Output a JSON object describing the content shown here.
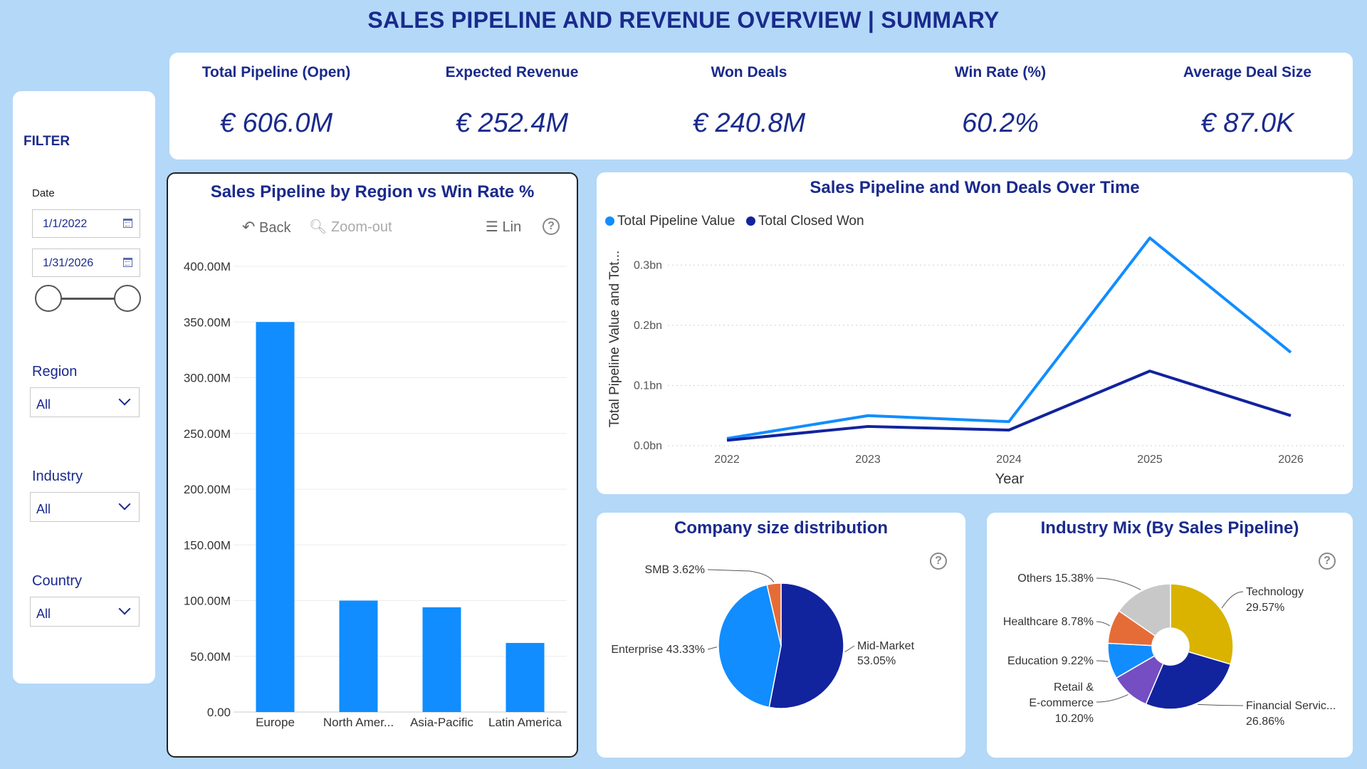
{
  "page": {
    "title": "SALES PIPELINE AND REVENUE OVERVIEW | SUMMARY"
  },
  "filter": {
    "heading": "FILTER",
    "date_label": "Date",
    "date_start": "1/1/2022",
    "date_end": "1/31/2026",
    "region_label": "Region",
    "region_value": "All",
    "industry_label": "Industry",
    "industry_value": "All",
    "country_label": "Country",
    "country_value": "All"
  },
  "kpis": [
    {
      "label": "Total Pipeline (Open)",
      "value": "€ 606.0M"
    },
    {
      "label": "Expected Revenue",
      "value": "€ 252.4M"
    },
    {
      "label": "Won Deals",
      "value": "€ 240.8M"
    },
    {
      "label": "Win Rate (%)",
      "value": "60.2%"
    },
    {
      "label": "Average Deal Size",
      "value": "€ 87.0K"
    }
  ],
  "bar_card": {
    "toolbar": {
      "back": "Back",
      "zoom_out": "Zoom-out",
      "lin": "Lin",
      "help": "?"
    }
  },
  "line_card": {},
  "pie1_card": {
    "help": "?"
  },
  "pie2_card": {
    "help": "?"
  },
  "chart_data": [
    {
      "type": "bar",
      "title": "Sales Pipeline by Region vs Win Rate %",
      "categories": [
        "Europe",
        "North Amer...",
        "Asia-Pacific",
        "Latin America"
      ],
      "values": [
        350,
        100,
        94,
        62
      ],
      "ylim": [
        0,
        400
      ],
      "yticks": [
        "0.00",
        "50.00M",
        "100.00M",
        "150.00M",
        "200.00M",
        "250.00M",
        "300.00M",
        "350.00M",
        "400.00M"
      ],
      "color": "#118dff",
      "grid": true
    },
    {
      "type": "line",
      "title": "Sales Pipeline and Won Deals Over Time",
      "x": [
        "2022",
        "2023",
        "2024",
        "2025",
        "2026"
      ],
      "xlabel": "Year",
      "ylabel": "Total Pipeline Value and Tot...",
      "ylim": [
        0,
        0.35
      ],
      "yticks": [
        "0.0bn",
        "0.1bn",
        "0.2bn",
        "0.3bn"
      ],
      "series": [
        {
          "name": "Total Pipeline Value",
          "values": [
            0.012,
            0.05,
            0.04,
            0.345,
            0.155
          ],
          "color": "#118dff"
        },
        {
          "name": "Total Closed Won",
          "values": [
            0.009,
            0.032,
            0.026,
            0.124,
            0.05
          ],
          "color": "#12239e"
        }
      ],
      "legend": "top-left",
      "grid": true
    },
    {
      "type": "pie",
      "title": "Company size distribution",
      "slices": [
        {
          "label": "Mid-Market",
          "pct_text": "53.05%",
          "value": 53.05,
          "color": "#12239e"
        },
        {
          "label": "Enterprise",
          "pct_text": "43.33%",
          "value": 43.33,
          "color": "#118dff"
        },
        {
          "label": "SMB",
          "pct_text": "3.62%",
          "value": 3.62,
          "color": "#e66c37"
        }
      ]
    },
    {
      "type": "pie",
      "title": "Industry Mix (By Sales Pipeline)",
      "donut": true,
      "slices": [
        {
          "label": "Technology",
          "pct_text": "29.57%",
          "value": 29.57,
          "color": "#d9b300"
        },
        {
          "label": "Financial Servic...",
          "pct_text": "26.86%",
          "value": 26.86,
          "color": "#12239e"
        },
        {
          "label": "Retail & E-commerce",
          "pct_text": "10.20%",
          "value": 10.2,
          "color": "#744ec2"
        },
        {
          "label": "Education",
          "pct_text": "9.22%",
          "value": 9.22,
          "color": "#118dff"
        },
        {
          "label": "Healthcare",
          "pct_text": "8.78%",
          "value": 8.78,
          "color": "#e66c37"
        },
        {
          "label": "Others",
          "pct_text": "15.38%",
          "value": 15.38,
          "color": "#c8c8c8"
        }
      ]
    }
  ]
}
